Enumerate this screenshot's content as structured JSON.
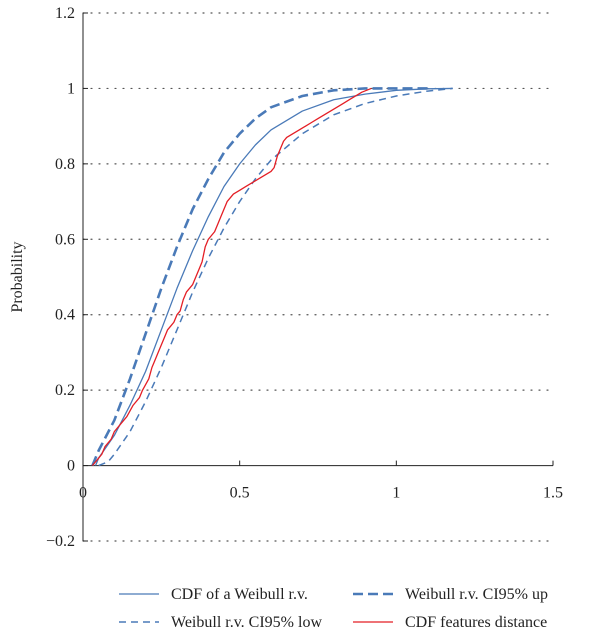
{
  "chart_data": {
    "type": "line",
    "title": "",
    "xlabel": "",
    "ylabel": "Probability",
    "xlim": [
      0,
      1.5
    ],
    "ylim": [
      -0.2,
      1.2
    ],
    "x_ticks": [
      0,
      0.5,
      1,
      1.5
    ],
    "x_tick_labels": [
      "0",
      "0.5",
      "1",
      "1.5"
    ],
    "y_ticks": [
      -0.2,
      0,
      0.2,
      0.4,
      0.6,
      0.8,
      1,
      1.2
    ],
    "y_tick_labels": [
      "−0.2",
      "0",
      "0.2",
      "0.4",
      "0.6",
      "0.8",
      "1",
      "1.2"
    ],
    "grid": "dotted horizontal",
    "legend_position": "bottom",
    "series": [
      {
        "name": "CDF of a Weibull r.v.",
        "color": "#4a7ab8",
        "dash": "solid",
        "points": [
          [
            0.04,
            0
          ],
          [
            0.05,
            0.02
          ],
          [
            0.1,
            0.08
          ],
          [
            0.15,
            0.16
          ],
          [
            0.2,
            0.25
          ],
          [
            0.25,
            0.36
          ],
          [
            0.3,
            0.47
          ],
          [
            0.35,
            0.57
          ],
          [
            0.4,
            0.66
          ],
          [
            0.45,
            0.74
          ],
          [
            0.5,
            0.8
          ],
          [
            0.55,
            0.85
          ],
          [
            0.6,
            0.89
          ],
          [
            0.7,
            0.94
          ],
          [
            0.8,
            0.97
          ],
          [
            0.9,
            0.985
          ],
          [
            1.0,
            0.995
          ],
          [
            1.1,
            0.999
          ],
          [
            1.18,
            1.0
          ]
        ]
      },
      {
        "name": "Weibull r.v. CI95% low",
        "color": "#4a7ab8",
        "dash": "short",
        "points": [
          [
            0.05,
            0
          ],
          [
            0.08,
            0.01
          ],
          [
            0.1,
            0.03
          ],
          [
            0.15,
            0.09
          ],
          [
            0.2,
            0.17
          ],
          [
            0.25,
            0.26
          ],
          [
            0.3,
            0.36
          ],
          [
            0.35,
            0.46
          ],
          [
            0.4,
            0.55
          ],
          [
            0.45,
            0.63
          ],
          [
            0.5,
            0.7
          ],
          [
            0.55,
            0.76
          ],
          [
            0.6,
            0.81
          ],
          [
            0.7,
            0.88
          ],
          [
            0.8,
            0.93
          ],
          [
            0.9,
            0.96
          ],
          [
            1.0,
            0.98
          ],
          [
            1.1,
            0.993
          ],
          [
            1.18,
            1.0
          ]
        ]
      },
      {
        "name": "Weibull r.v. CI95% up",
        "color": "#4a7ab8",
        "dash": "long",
        "points": [
          [
            0.03,
            0
          ],
          [
            0.05,
            0.04
          ],
          [
            0.1,
            0.12
          ],
          [
            0.15,
            0.23
          ],
          [
            0.2,
            0.35
          ],
          [
            0.25,
            0.47
          ],
          [
            0.3,
            0.58
          ],
          [
            0.35,
            0.68
          ],
          [
            0.4,
            0.76
          ],
          [
            0.45,
            0.83
          ],
          [
            0.5,
            0.88
          ],
          [
            0.55,
            0.92
          ],
          [
            0.6,
            0.95
          ],
          [
            0.7,
            0.98
          ],
          [
            0.8,
            0.995
          ],
          [
            0.9,
            1.0
          ],
          [
            1.0,
            1.0
          ],
          [
            1.1,
            1.0
          ]
        ]
      },
      {
        "name": "CDF features distance",
        "color": "#e41e25",
        "dash": "solid",
        "points": [
          [
            0.03,
            0
          ],
          [
            0.04,
            0.01
          ],
          [
            0.05,
            0.02
          ],
          [
            0.06,
            0.03
          ],
          [
            0.07,
            0.05
          ],
          [
            0.08,
            0.06
          ],
          [
            0.09,
            0.07
          ],
          [
            0.1,
            0.09
          ],
          [
            0.12,
            0.11
          ],
          [
            0.14,
            0.13
          ],
          [
            0.16,
            0.16
          ],
          [
            0.18,
            0.18
          ],
          [
            0.19,
            0.2
          ],
          [
            0.21,
            0.23
          ],
          [
            0.22,
            0.26
          ],
          [
            0.23,
            0.28
          ],
          [
            0.24,
            0.3
          ],
          [
            0.25,
            0.32
          ],
          [
            0.26,
            0.34
          ],
          [
            0.27,
            0.36
          ],
          [
            0.28,
            0.37
          ],
          [
            0.29,
            0.38
          ],
          [
            0.3,
            0.4
          ],
          [
            0.31,
            0.41
          ],
          [
            0.32,
            0.44
          ],
          [
            0.33,
            0.46
          ],
          [
            0.34,
            0.47
          ],
          [
            0.35,
            0.48
          ],
          [
            0.36,
            0.5
          ],
          [
            0.37,
            0.52
          ],
          [
            0.38,
            0.54
          ],
          [
            0.39,
            0.58
          ],
          [
            0.4,
            0.6
          ],
          [
            0.41,
            0.61
          ],
          [
            0.42,
            0.62
          ],
          [
            0.43,
            0.64
          ],
          [
            0.44,
            0.66
          ],
          [
            0.45,
            0.68
          ],
          [
            0.46,
            0.7
          ],
          [
            0.47,
            0.71
          ],
          [
            0.48,
            0.72
          ],
          [
            0.5,
            0.73
          ],
          [
            0.52,
            0.74
          ],
          [
            0.54,
            0.75
          ],
          [
            0.56,
            0.76
          ],
          [
            0.58,
            0.77
          ],
          [
            0.6,
            0.78
          ],
          [
            0.61,
            0.79
          ],
          [
            0.62,
            0.82
          ],
          [
            0.63,
            0.84
          ],
          [
            0.64,
            0.86
          ],
          [
            0.65,
            0.87
          ],
          [
            0.67,
            0.88
          ],
          [
            0.69,
            0.89
          ],
          [
            0.71,
            0.9
          ],
          [
            0.73,
            0.91
          ],
          [
            0.75,
            0.92
          ],
          [
            0.77,
            0.93
          ],
          [
            0.79,
            0.94
          ],
          [
            0.81,
            0.95
          ],
          [
            0.83,
            0.96
          ],
          [
            0.85,
            0.97
          ],
          [
            0.87,
            0.98
          ],
          [
            0.89,
            0.99
          ],
          [
            0.92,
            1.0
          ]
        ]
      }
    ]
  }
}
